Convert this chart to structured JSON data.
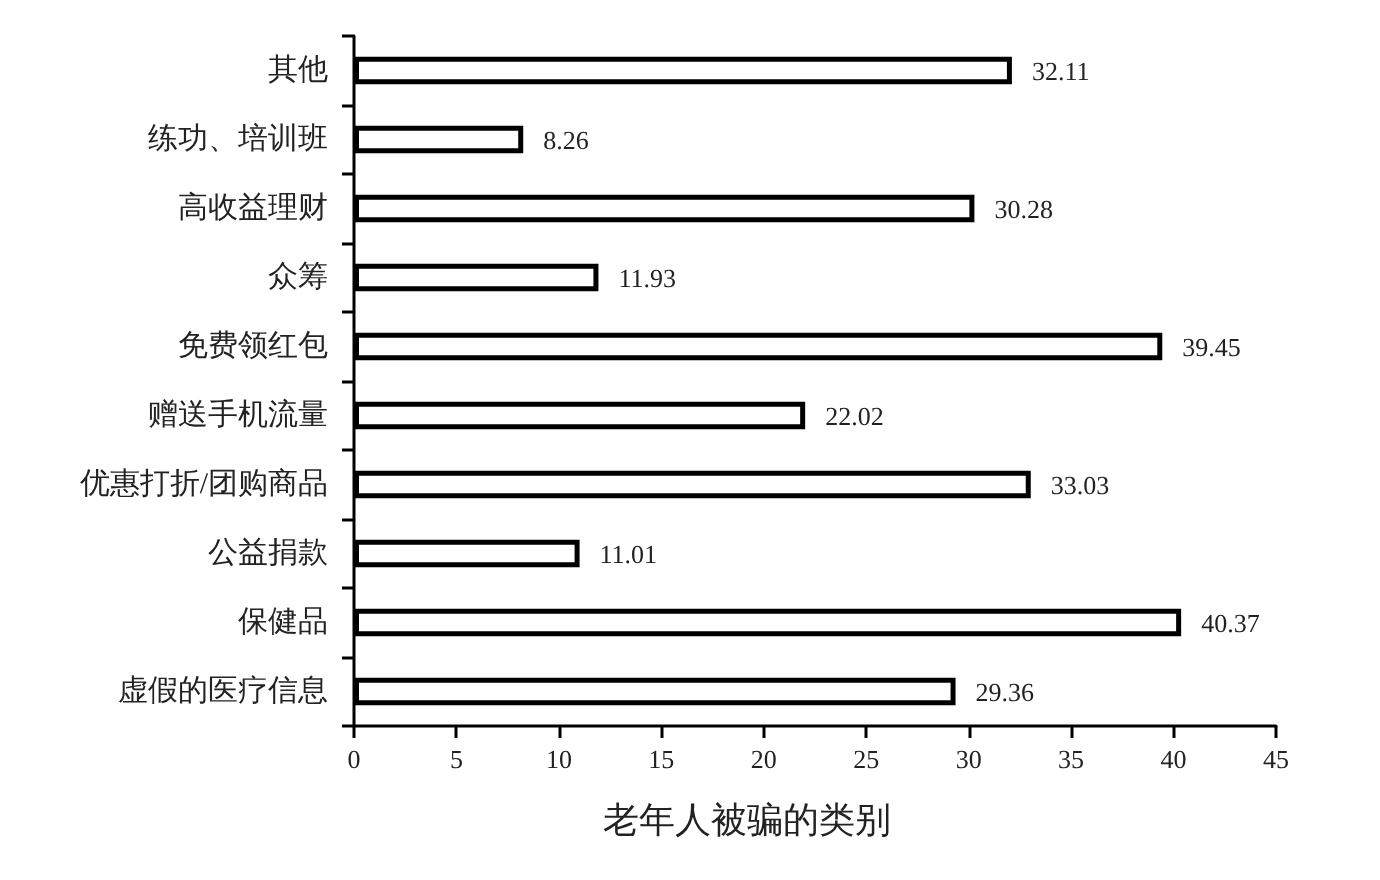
{
  "chart_data": {
    "type": "bar",
    "orientation": "horizontal",
    "categories": [
      "其他",
      "练功、培训班",
      "高收益理财",
      "众筹",
      "免费领红包",
      "赠送手机流量",
      "优惠打折/团购商品",
      "公益捐款",
      "保健品",
      "虚假的医疗信息"
    ],
    "values": [
      32.11,
      8.26,
      30.28,
      11.93,
      39.45,
      22.02,
      33.03,
      11.01,
      40.37,
      29.36
    ],
    "color": "#ffffff",
    "xlabel": "老年人被骗的类别",
    "xlim": [
      0,
      45
    ],
    "xticks": [
      0,
      5,
      10,
      15,
      20,
      25,
      30,
      35,
      40,
      45
    ],
    "grid": false,
    "data_labels": true
  }
}
